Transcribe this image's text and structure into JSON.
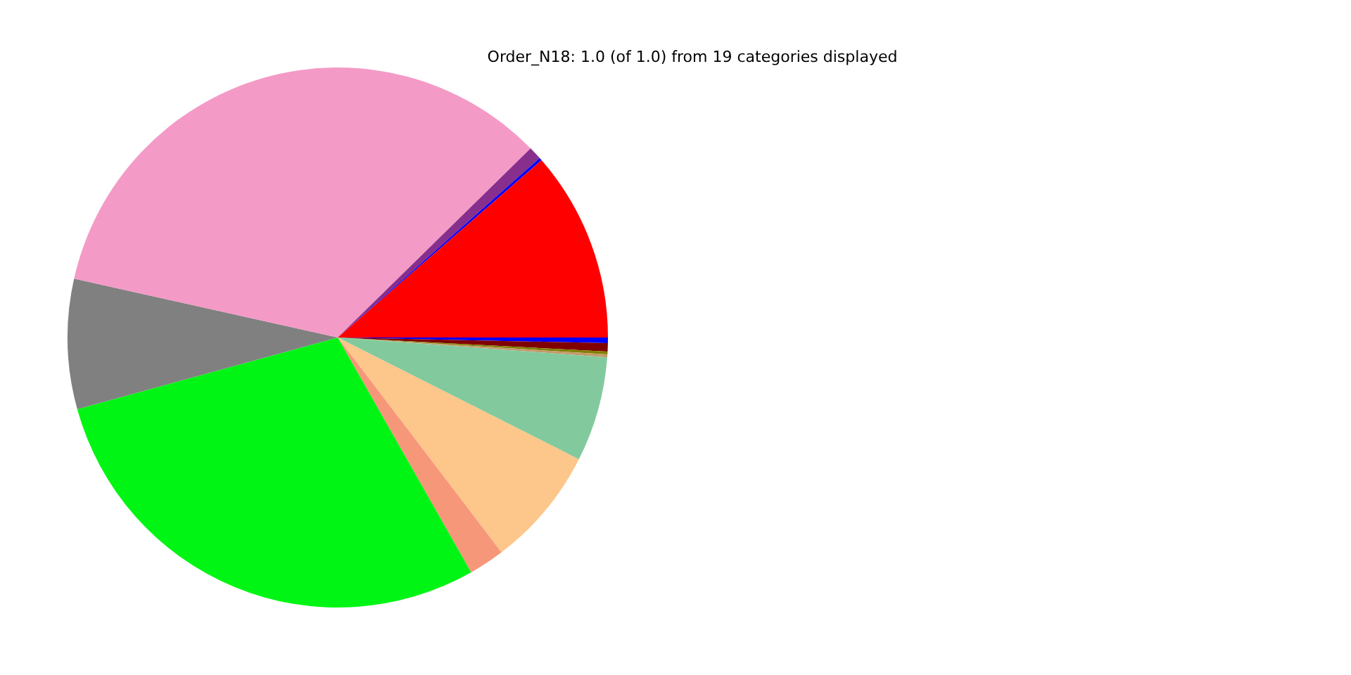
{
  "chart_data": {
    "type": "pie",
    "title": "Order_N18: 1.0 (of 1.0) from 19 categories displayed",
    "categories": [
      null,
      null,
      null,
      null,
      null,
      null,
      null,
      null,
      null,
      null,
      null,
      null,
      null
    ],
    "values": [
      11.4,
      0.17,
      0.78,
      34.15,
      7.78,
      28.94,
      2.14,
      7.19,
      6.28,
      0.17,
      0.17,
      0.5,
      0.33
    ],
    "colors": [
      "#ff0000",
      "#0000ff",
      "#882e8c",
      "#f49ac6",
      "#808080",
      "#00f514",
      "#f7977a",
      "#fdc68a",
      "#82ca9d",
      "#c49a6c",
      "#808000",
      "#800000",
      "#0000ff"
    ],
    "legend": false
  }
}
